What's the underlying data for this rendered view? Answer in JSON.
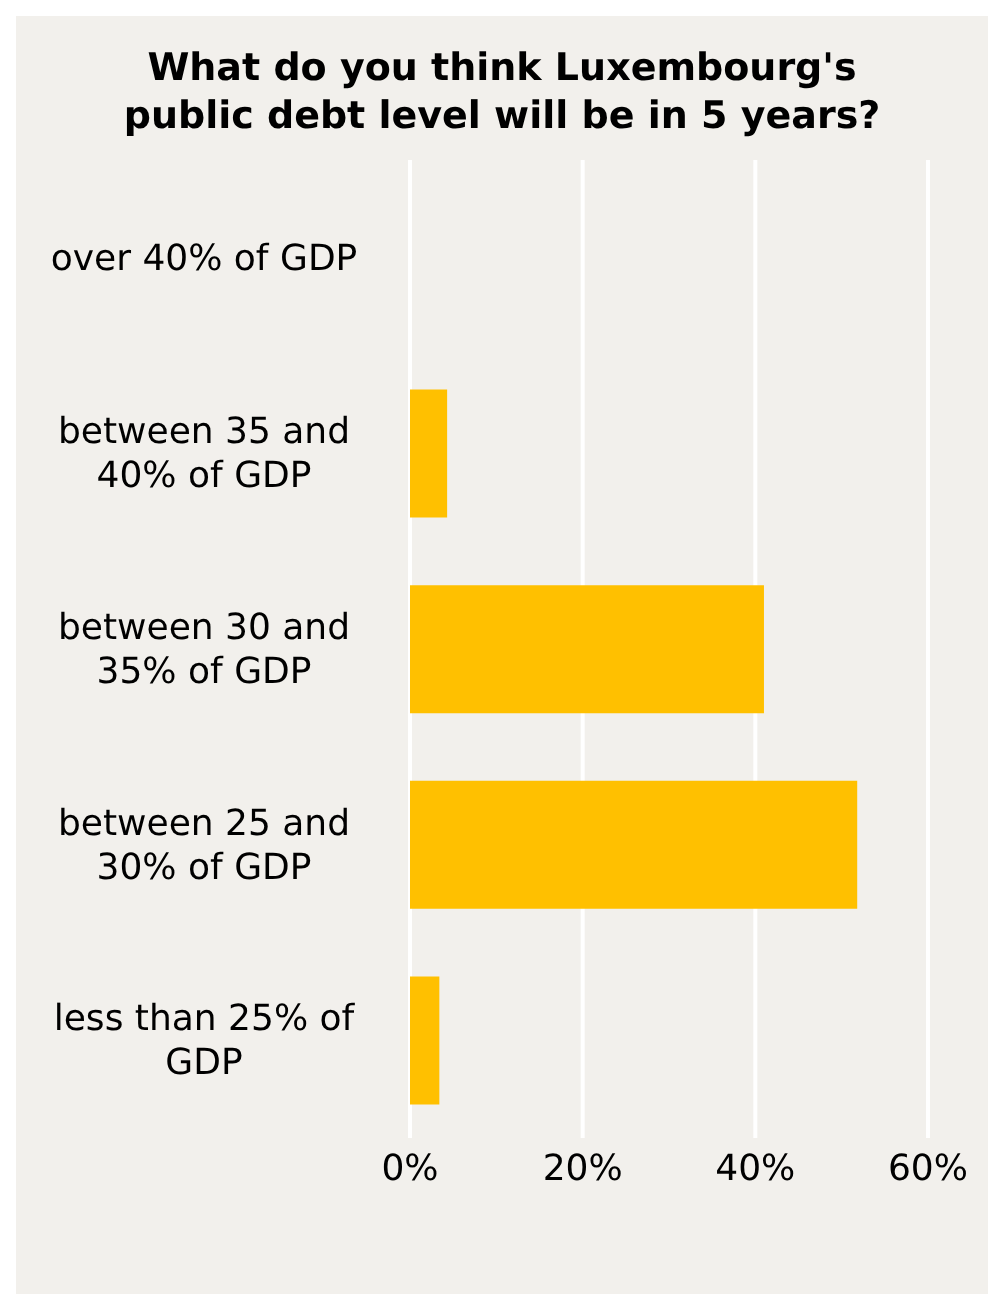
{
  "chart_data": {
    "type": "bar",
    "orientation": "horizontal",
    "title": "What do you think Luxembourg's public debt level will be in 5 years?",
    "categories": [
      "over 40% of GDP",
      "between 35 and 40% of GDP",
      "between 30 and 35% of GDP",
      "between 25 and 30% of GDP",
      "less than 25% of GDP"
    ],
    "values": [
      0,
      4.3,
      41,
      51.8,
      3.4
    ],
    "color": "#ffc000",
    "xlim": [
      0,
      60
    ],
    "xticks": [
      {
        "value": 0,
        "label": "0%"
      },
      {
        "value": 20,
        "label": "20%"
      },
      {
        "value": 40,
        "label": "40%"
      },
      {
        "value": 60,
        "label": "60%"
      }
    ],
    "grid": "x",
    "legend": false
  }
}
